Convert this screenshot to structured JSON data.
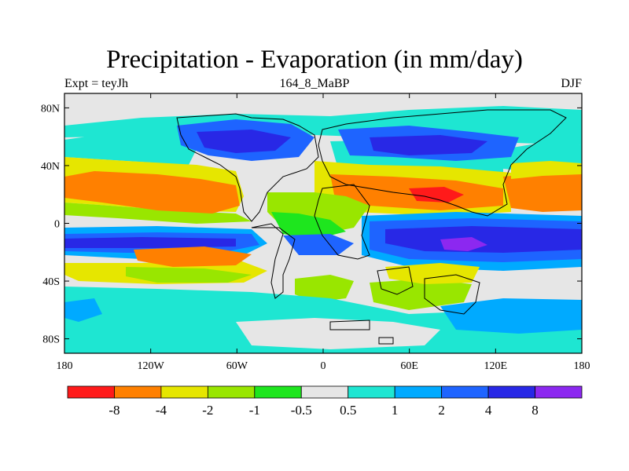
{
  "title": "Precipitation - Evaporation (in mm/day)",
  "left_label": "Expt = teyJh",
  "center_label": "164_8_MaBP",
  "right_label": "DJF",
  "map": {
    "lon_ticks": [
      "180",
      "120W",
      "60W",
      "0",
      "60E",
      "120E",
      "180"
    ],
    "lat_ticks": [
      "80N",
      "40N",
      "0",
      "40S",
      "80S"
    ],
    "lon_values": [
      -180,
      -120,
      -60,
      0,
      60,
      120,
      180
    ],
    "lat_values": [
      80,
      40,
      0,
      -40,
      -80
    ],
    "lon_range": [
      -180,
      180
    ],
    "lat_range": [
      -90,
      90
    ]
  },
  "colorbar": {
    "labels": [
      "-8",
      "-4",
      "-2",
      "-1",
      "-0.5",
      "0.5",
      "1",
      "2",
      "4",
      "8"
    ],
    "colors": [
      "#ff1a1a",
      "#ff8000",
      "#e6e600",
      "#99e600",
      "#1ee61e",
      "#e6e6e6",
      "#1ee6d2",
      "#00aaff",
      "#1e64ff",
      "#2828e6",
      "#8c28f0"
    ]
  },
  "colors": {
    "background": "#e6e6e6",
    "red": "#ff1a1a",
    "orange": "#ff8000",
    "yellow": "#e6e600",
    "lightgreen": "#99e600",
    "green": "#1ee61e",
    "cyan": "#1ee6d2",
    "lightblue": "#00aaff",
    "blue": "#1e64ff",
    "darkblue": "#2828e6",
    "purple": "#8c28f0"
  }
}
